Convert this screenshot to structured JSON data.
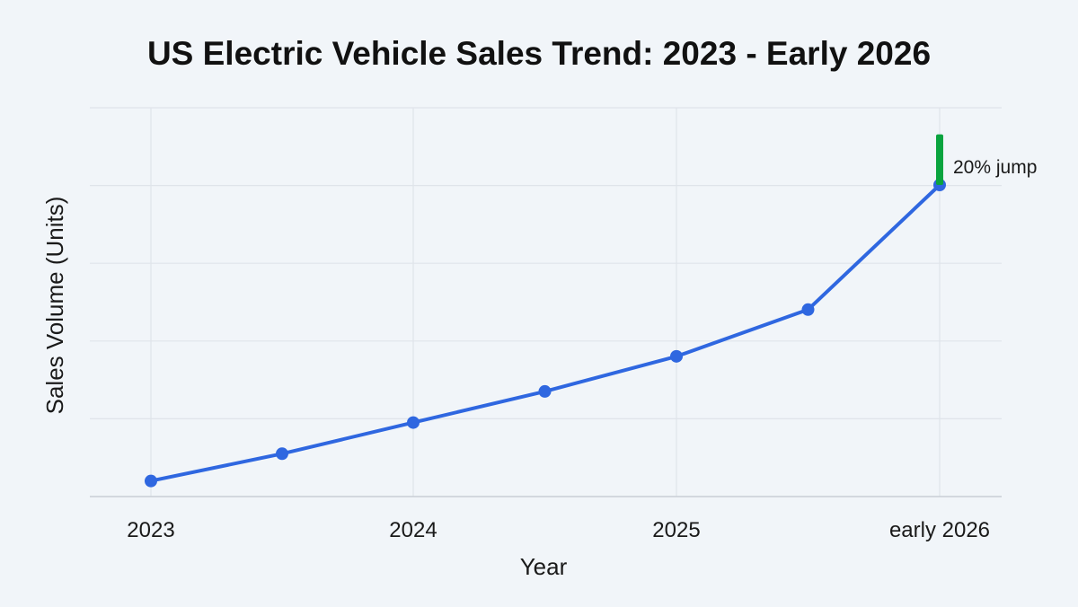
{
  "chart_data": {
    "type": "line",
    "title": "US Electric Vehicle Sales Trend: 2023 - Early 2026",
    "xlabel": "Year",
    "ylabel": "Sales Volume (Units)",
    "x_tick_labels": [
      "2023",
      "2024",
      "2025",
      "early 2026"
    ],
    "x": [
      0,
      0.5,
      1,
      1.5,
      2,
      2.5,
      3
    ],
    "series": [
      {
        "values": [
          0.2,
          0.55,
          0.95,
          1.35,
          1.8,
          2.4,
          4.0
        ]
      }
    ],
    "ylim": [
      0,
      4.0
    ],
    "y_gridlines": 5,
    "grid": true,
    "annotation": {
      "text": "20% jump",
      "x": 3,
      "y_from": 4.0,
      "y_to": 4.65
    },
    "colors": {
      "line": "#2f67e0",
      "annotation": "#0aa43f",
      "grid": "#dfe4ea",
      "axis": "#c9ced6"
    }
  }
}
